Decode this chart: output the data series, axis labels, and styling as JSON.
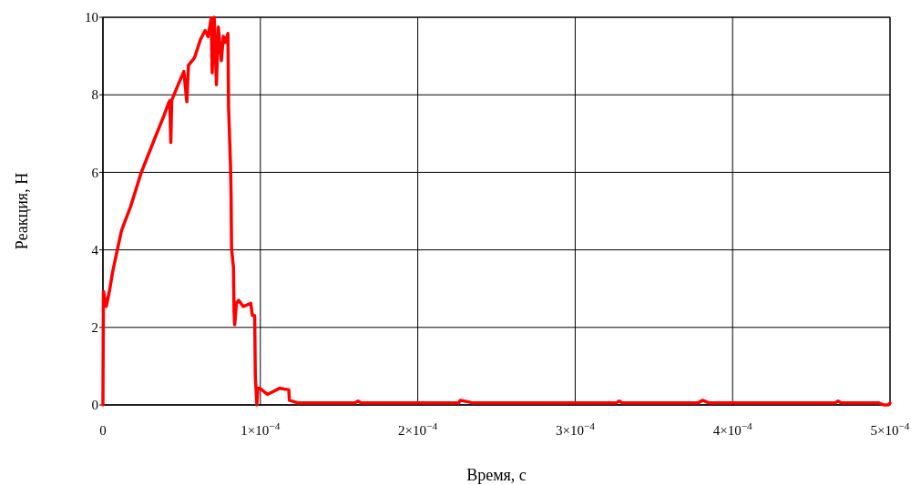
{
  "chart_data": {
    "type": "line",
    "xlabel": "Время, с",
    "ylabel": "Реакция, Н",
    "x": [
      0,
      3e-07,
      2.1e-06,
      4.1e-06,
      6e-06,
      8.9e-06,
      1.18e-05,
      1.76e-05,
      2.43e-05,
      3.11e-05,
      3.88e-05,
      4.17e-05,
      4.25e-05,
      4.31e-05,
      4.37e-05,
      4.85e-05,
      5.14e-05,
      5.33e-05,
      5.43e-05,
      5.82e-05,
      6.2e-05,
      6.49e-05,
      6.68e-05,
      6.88e-05,
      6.94e-05,
      7.07e-05,
      7.21e-05,
      7.33e-05,
      7.52e-05,
      7.65e-05,
      7.75e-05,
      7.94e-05,
      7.98e-05,
      8.1e-05,
      8.14e-05,
      8.17e-05,
      8.29e-05,
      8.33e-05,
      8.37e-05,
      8.48e-05,
      8.62e-05,
      8.91e-05,
      9.39e-05,
      9.49e-05,
      9.64e-05,
      9.68e-05,
      9.78e-05,
      9.84e-05,
      9.97e-05,
      0.0001045,
      0.0001123,
      0.0001181,
      0.0001184,
      0.0001239,
      0.00016,
      0.000162,
      0.000164,
      0.000226,
      0.000227,
      0.000232,
      0.000235,
      0.000326,
      0.000328,
      0.00033,
      0.000378,
      0.000381,
      0.000385,
      0.000465,
      0.000467,
      0.000469,
      0.000493,
      0.000496,
      0.000499,
      0.0005
    ],
    "values": [
      0,
      2.93,
      2.54,
      2.93,
      3.4,
      3.95,
      4.5,
      5.12,
      5.99,
      6.69,
      7.47,
      7.79,
      7.85,
      6.77,
      7.86,
      8.33,
      8.6,
      7.82,
      8.76,
      8.96,
      9.43,
      9.66,
      9.5,
      9.98,
      8.57,
      10.0,
      8.26,
      9.75,
      8.88,
      9.51,
      9.35,
      9.58,
      7.7,
      6.22,
      5.44,
      4.03,
      3.56,
      2.39,
      2.07,
      2.62,
      2.7,
      2.54,
      2.62,
      2.31,
      2.3,
      0.74,
      0,
      0.43,
      0.43,
      0.27,
      0.43,
      0.39,
      0.12,
      0.05,
      0.05,
      0.1,
      0.05,
      0.05,
      0.12,
      0.08,
      0.05,
      0.05,
      0.1,
      0.05,
      0.05,
      0.12,
      0.05,
      0.05,
      0.1,
      0.05,
      0.05,
      0,
      0,
      0.05
    ],
    "color": "#ff0000",
    "line_style": "solid",
    "xlim": [
      0,
      0.0005
    ],
    "xticks": [
      0,
      {
        "value": 0.0001,
        "label": "1×10$^{−4}$"
      },
      {
        "value": 0.0002,
        "label": "2×10$^{−4}$"
      },
      {
        "value": 0.0003,
        "label": "3×10$^{−4}$"
      },
      {
        "value": 0.0004,
        "label": "4×10$^{−4}$"
      },
      {
        "value": 0.0005,
        "label": "5×10$^{−4}$"
      }
    ],
    "ylim": [
      0,
      10
    ],
    "yticks": [
      0,
      2,
      4,
      6,
      8,
      10
    ],
    "grid": true
  }
}
